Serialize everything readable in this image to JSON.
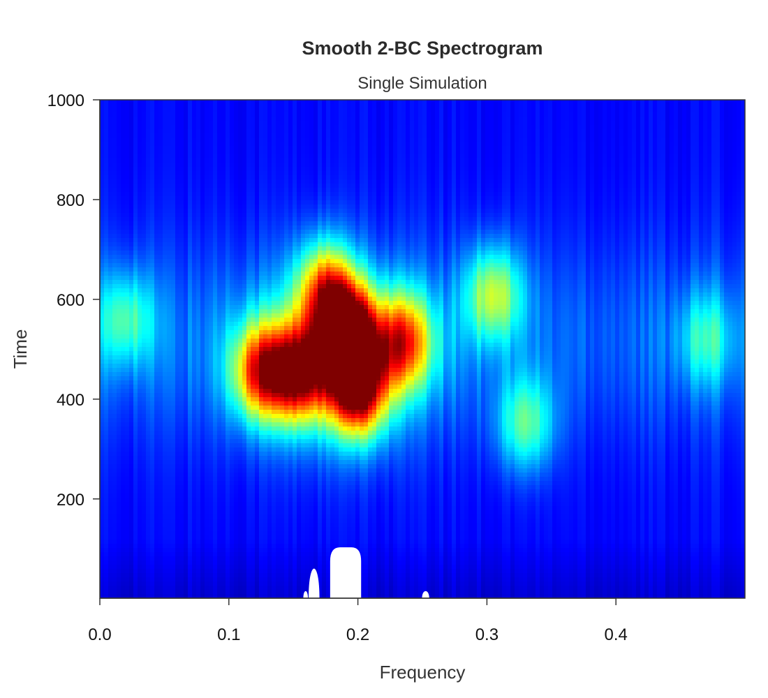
{
  "chart_data": {
    "type": "heatmap",
    "title": "Smooth 2-BC Spectrogram",
    "subtitle": "Single Simulation",
    "xlabel": "Frequency",
    "ylabel": "Time",
    "xlim": [
      0.0,
      0.5
    ],
    "ylim": [
      1,
      1000
    ],
    "x_ticks": [
      "0.0",
      "0.1",
      "0.2",
      "0.3",
      "0.4"
    ],
    "y_ticks": [
      "200",
      "400",
      "600",
      "800",
      "1000"
    ],
    "colormap": [
      "#00007f",
      "#0000ff",
      "#007fff",
      "#00ffff",
      "#7fff7f",
      "#ffff00",
      "#ff7f00",
      "#ff0000",
      "#7f0000"
    ],
    "background_color": "#0a14e6",
    "hotspots": [
      {
        "freq": 0.192,
        "time": 530,
        "intensity": 1.0
      },
      {
        "freq": 0.2,
        "time": 420,
        "intensity": 0.85
      },
      {
        "freq": 0.155,
        "time": 450,
        "intensity": 0.75
      },
      {
        "freq": 0.125,
        "time": 455,
        "intensity": 0.7
      },
      {
        "freq": 0.235,
        "time": 515,
        "intensity": 0.65
      },
      {
        "freq": 0.175,
        "time": 620,
        "intensity": 0.6
      },
      {
        "freq": 0.305,
        "time": 610,
        "intensity": 0.45
      },
      {
        "freq": 0.33,
        "time": 350,
        "intensity": 0.35
      },
      {
        "freq": 0.02,
        "time": 560,
        "intensity": 0.3
      },
      {
        "freq": 0.47,
        "time": 520,
        "intensity": 0.25
      }
    ],
    "missing_regions_note": ""
  }
}
